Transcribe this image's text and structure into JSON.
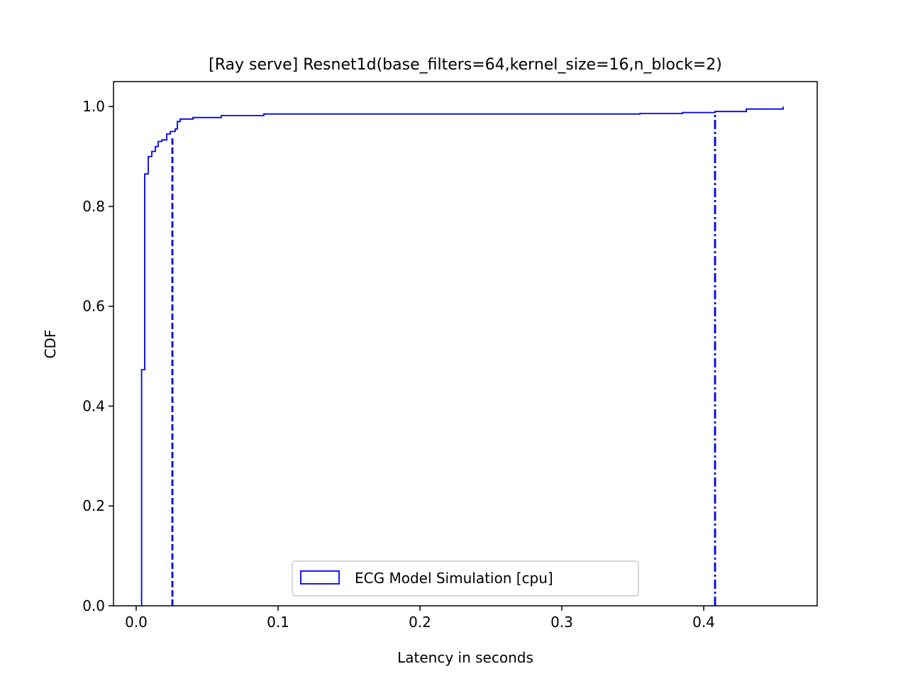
{
  "chart_data": {
    "type": "line",
    "title": "[Ray serve] Resnet1d(base_filters=64,kernel_size=16,n_block=2)",
    "xlabel": "Latency in seconds",
    "ylabel": "CDF",
    "xlim": [
      -0.016,
      0.48
    ],
    "ylim": [
      0.0,
      1.05
    ],
    "xticks": [
      0.0,
      0.1,
      0.2,
      0.3,
      0.4
    ],
    "xtick_labels": [
      "0.0",
      "0.1",
      "0.2",
      "0.3",
      "0.4"
    ],
    "yticks": [
      0.0,
      0.2,
      0.4,
      0.6,
      0.8,
      1.0
    ],
    "ytick_labels": [
      "0.0",
      "0.2",
      "0.4",
      "0.6",
      "0.8",
      "1.0"
    ],
    "legend_position": "lower-center",
    "grid": false,
    "color": "#0000ee",
    "series": [
      {
        "name": "ECG Model Simulation [cpu]",
        "kind": "step-cdf",
        "x": [
          0.0038,
          0.0038,
          0.006,
          0.006,
          0.0085,
          0.0085,
          0.011,
          0.011,
          0.0135,
          0.0135,
          0.0155,
          0.0155,
          0.018,
          0.018,
          0.0215,
          0.0215,
          0.024,
          0.024,
          0.0275,
          0.0275,
          0.029,
          0.029,
          0.031,
          0.031,
          0.04,
          0.04,
          0.06,
          0.06,
          0.09,
          0.09,
          0.355,
          0.355,
          0.385,
          0.385,
          0.408,
          0.408,
          0.43,
          0.43,
          0.456,
          0.456
        ],
        "y": [
          0.0,
          0.473,
          0.473,
          0.865,
          0.865,
          0.9,
          0.9,
          0.91,
          0.91,
          0.92,
          0.92,
          0.93,
          0.93,
          0.933,
          0.933,
          0.945,
          0.945,
          0.95,
          0.95,
          0.955,
          0.955,
          0.97,
          0.97,
          0.975,
          0.975,
          0.978,
          0.978,
          0.982,
          0.982,
          0.985,
          0.985,
          0.986,
          0.986,
          0.988,
          0.988,
          0.99,
          0.99,
          0.995,
          0.995,
          1.0
        ]
      }
    ],
    "reference_lines": [
      {
        "style": "dashed",
        "x": 0.0255,
        "y_top": 0.94
      },
      {
        "style": "dashdot",
        "x": 0.408,
        "y_top": 0.985
      }
    ]
  }
}
